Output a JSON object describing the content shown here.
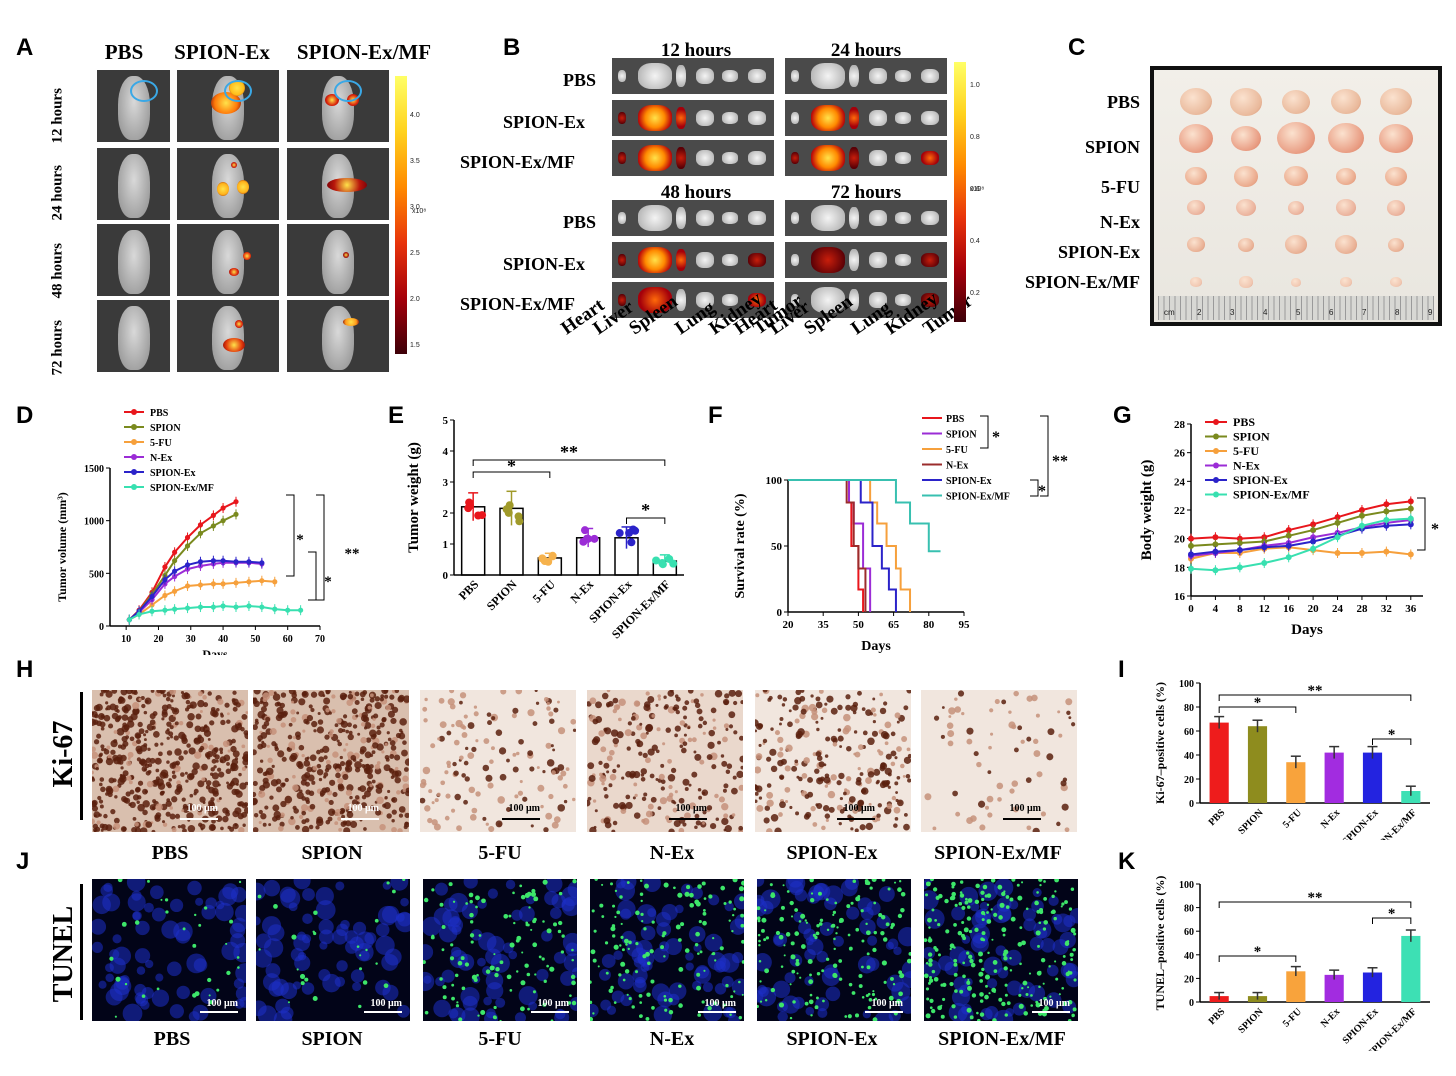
{
  "panel_letters": [
    "A",
    "B",
    "C",
    "D",
    "E",
    "F",
    "G",
    "H",
    "I",
    "J",
    "K"
  ],
  "panel_a": {
    "columns": [
      "PBS",
      "SPION-Ex",
      "SPION-Ex/MF"
    ],
    "rows": [
      "12 hours",
      "24 hours",
      "48 hours",
      "72 hours"
    ],
    "colorbar_ticks": [
      "4.0",
      "3.5",
      "3.0",
      "2.5",
      "2.0",
      "1.5"
    ],
    "colorbar_unit": "x10⁸"
  },
  "panel_b": {
    "timepoints": [
      "12 hours",
      "24 hours",
      "48 hours",
      "72 hours"
    ],
    "groups": [
      "PBS",
      "SPION-Ex",
      "SPION-Ex/MF"
    ],
    "organs": [
      "Heart",
      "Liver",
      "Spleen",
      "Lung",
      "Kidney",
      "Tumor"
    ],
    "colorbar_ticks": [
      "1.0",
      "0.8",
      "0.6",
      "0.4",
      "0.2"
    ],
    "colorbar_unit": "x10⁸"
  },
  "panel_c": {
    "groups": [
      "PBS",
      "SPION",
      "5-FU",
      "N-Ex",
      "SPION-Ex",
      "SPION-Ex/MF"
    ],
    "ruler_labels": [
      "cm",
      "2",
      "3",
      "4",
      "5",
      "6",
      "7",
      "8",
      "9"
    ]
  },
  "panel_h": {
    "stain": "Ki-67",
    "groups": [
      "PBS",
      "SPION",
      "5-FU",
      "N-Ex",
      "SPION-Ex",
      "SPION-Ex/MF"
    ],
    "scale": "100 μm"
  },
  "panel_j": {
    "stain": "TUNEL",
    "groups": [
      "PBS",
      "SPION",
      "5-FU",
      "N-Ex",
      "SPION-Ex",
      "SPION-Ex/MF"
    ],
    "scale": "100 μm"
  },
  "chart_data": [
    {
      "panel": "D",
      "type": "line",
      "xlabel": "Days",
      "ylabel": "Tumor volume (mm³)",
      "xlim": [
        5,
        70
      ],
      "ylim": [
        0,
        1500
      ],
      "xticks": [
        10,
        20,
        30,
        40,
        50,
        60,
        70
      ],
      "yticks": [
        0,
        500,
        1000,
        1500
      ],
      "series": [
        {
          "name": "PBS",
          "color": "#e8161c",
          "x": [
            11,
            14,
            18,
            22,
            25,
            29,
            33,
            37,
            40,
            44
          ],
          "y": [
            60,
            150,
            320,
            560,
            700,
            840,
            960,
            1050,
            1120,
            1180
          ]
        },
        {
          "name": "SPION",
          "color": "#7a8a1e",
          "x": [
            11,
            14,
            18,
            22,
            25,
            29,
            33,
            37,
            40,
            44
          ],
          "y": [
            60,
            140,
            300,
            480,
            620,
            760,
            880,
            950,
            1000,
            1060
          ]
        },
        {
          "name": "5-FU",
          "color": "#f6a03c",
          "x": [
            11,
            14,
            18,
            22,
            25,
            29,
            33,
            37,
            40,
            44,
            48,
            52,
            56
          ],
          "y": [
            60,
            110,
            200,
            290,
            330,
            380,
            390,
            400,
            400,
            410,
            420,
            430,
            420
          ]
        },
        {
          "name": "N-Ex",
          "color": "#9b2cd6",
          "x": [
            11,
            14,
            18,
            22,
            25,
            29,
            33,
            37,
            40,
            44,
            48,
            52
          ],
          "y": [
            60,
            130,
            250,
            400,
            470,
            540,
            570,
            590,
            600,
            600,
            600,
            590
          ]
        },
        {
          "name": "SPION-Ex",
          "color": "#2b23c9",
          "x": [
            11,
            14,
            18,
            22,
            25,
            29,
            33,
            37,
            40,
            44,
            48,
            52
          ],
          "y": [
            60,
            140,
            280,
            440,
            520,
            580,
            610,
            620,
            620,
            610,
            610,
            600
          ]
        },
        {
          "name": "SPION-Ex/MF",
          "color": "#38e0b0",
          "x": [
            11,
            14,
            18,
            22,
            25,
            29,
            33,
            37,
            40,
            44,
            48,
            52,
            56,
            60,
            64
          ],
          "y": [
            60,
            110,
            140,
            150,
            160,
            170,
            180,
            180,
            190,
            180,
            190,
            180,
            160,
            150,
            150
          ]
        }
      ],
      "annotations": [
        "*",
        "*",
        "**"
      ]
    },
    {
      "panel": "E",
      "type": "bar",
      "xlabel": "",
      "ylabel": "Tumor weight (g)",
      "ylim": [
        0,
        5
      ],
      "yticks": [
        0,
        1,
        2,
        3,
        4,
        5
      ],
      "categories": [
        "PBS",
        "SPION",
        "5-FU",
        "N-Ex",
        "SPION-Ex",
        "SPION-Ex/MF"
      ],
      "values": [
        2.2,
        2.15,
        0.55,
        1.2,
        1.2,
        0.45
      ],
      "errors": [
        0.45,
        0.55,
        0.15,
        0.3,
        0.35,
        0.2
      ],
      "point_colors": [
        "#e8161c",
        "#a09a2a",
        "#f6b24c",
        "#9b2cd6",
        "#2b23c9",
        "#38e0b0"
      ],
      "annotations": [
        "*",
        "**",
        "*"
      ]
    },
    {
      "panel": "F",
      "type": "line",
      "xlabel": "Days",
      "ylabel": "Survival rate (%)",
      "xlim": [
        20,
        95
      ],
      "ylim": [
        0,
        100
      ],
      "xticks": [
        20,
        35,
        50,
        65,
        80,
        95
      ],
      "yticks": [
        0,
        50,
        100
      ],
      "series": [
        {
          "name": "PBS",
          "color": "#e8161c",
          "x": [
            20,
            46,
            46,
            47,
            47,
            50,
            50,
            52,
            52
          ],
          "y": [
            100,
            100,
            83,
            83,
            50,
            50,
            17,
            17,
            0
          ]
        },
        {
          "name": "SPION",
          "color": "#9b2cd6",
          "x": [
            20,
            46,
            46,
            48,
            48,
            52,
            52,
            55,
            55
          ],
          "y": [
            100,
            100,
            83,
            83,
            67,
            67,
            33,
            33,
            0
          ]
        },
        {
          "name": "5-FU",
          "color": "#f6a03c",
          "x": [
            20,
            55,
            55,
            58,
            58,
            62,
            62,
            66,
            66,
            68,
            68,
            72,
            72
          ],
          "y": [
            100,
            100,
            83,
            83,
            67,
            67,
            50,
            50,
            33,
            33,
            17,
            17,
            0
          ]
        },
        {
          "name": "N-Ex",
          "color": "#9b2c2c",
          "x": [
            20,
            45,
            45,
            48,
            48,
            50,
            50,
            53,
            53
          ],
          "y": [
            100,
            100,
            83,
            83,
            50,
            50,
            33,
            33,
            0
          ]
        },
        {
          "name": "SPION-Ex",
          "color": "#2b23c9",
          "x": [
            20,
            51,
            51,
            56,
            56,
            60,
            60,
            63,
            63,
            66,
            66
          ],
          "y": [
            100,
            100,
            83,
            83,
            50,
            50,
            33,
            33,
            17,
            17,
            0
          ]
        },
        {
          "name": "SPION-Ex/MF",
          "color": "#38c0b0",
          "x": [
            20,
            66,
            66,
            72,
            72,
            80,
            80,
            85
          ],
          "y": [
            100,
            100,
            83,
            83,
            67,
            67,
            46,
            46
          ]
        }
      ],
      "annotations": [
        "*",
        "*",
        "**"
      ]
    },
    {
      "panel": "G",
      "type": "line",
      "xlabel": "Days",
      "ylabel": "Body weight (g)",
      "xlim": [
        0,
        38
      ],
      "ylim": [
        16,
        28
      ],
      "xticks": [
        0,
        4,
        8,
        12,
        16,
        20,
        24,
        28,
        32,
        36
      ],
      "yticks": [
        16,
        18,
        20,
        22,
        24,
        26,
        28
      ],
      "series": [
        {
          "name": "PBS",
          "color": "#e8161c",
          "x": [
            0,
            4,
            8,
            12,
            16,
            20,
            24,
            28,
            32,
            36
          ],
          "y": [
            20.0,
            20.1,
            20.0,
            20.1,
            20.6,
            21.0,
            21.5,
            22.0,
            22.4,
            22.6
          ]
        },
        {
          "name": "SPION",
          "color": "#7a8a1e",
          "x": [
            0,
            4,
            8,
            12,
            16,
            20,
            24,
            28,
            32,
            36
          ],
          "y": [
            19.5,
            19.6,
            19.7,
            19.8,
            20.2,
            20.6,
            21.1,
            21.6,
            21.9,
            22.1
          ]
        },
        {
          "name": "5-FU",
          "color": "#f6a03c",
          "x": [
            0,
            4,
            8,
            12,
            16,
            20,
            24,
            28,
            32,
            36
          ],
          "y": [
            18.6,
            19.0,
            19.0,
            19.3,
            19.4,
            19.2,
            19.0,
            19.0,
            19.1,
            18.9
          ]
        },
        {
          "name": "N-Ex",
          "color": "#9b2cd6",
          "x": [
            0,
            4,
            8,
            12,
            16,
            20,
            24,
            28,
            32,
            36
          ],
          "y": [
            18.8,
            19.0,
            19.2,
            19.5,
            19.7,
            20.1,
            20.4,
            20.8,
            21.1,
            21.3
          ]
        },
        {
          "name": "SPION-Ex",
          "color": "#2b23c9",
          "x": [
            0,
            4,
            8,
            12,
            16,
            20,
            24,
            28,
            32,
            36
          ],
          "y": [
            18.9,
            19.1,
            19.2,
            19.4,
            19.5,
            19.8,
            20.2,
            20.7,
            20.9,
            21.0
          ]
        },
        {
          "name": "SPION-Ex/MF",
          "color": "#38e0b0",
          "x": [
            0,
            4,
            8,
            12,
            16,
            20,
            24,
            28,
            32,
            36
          ],
          "y": [
            17.9,
            17.8,
            18.0,
            18.3,
            18.7,
            19.3,
            20.1,
            20.9,
            21.3,
            21.4
          ]
        }
      ],
      "annotations": [
        "*"
      ]
    },
    {
      "panel": "I",
      "type": "bar",
      "xlabel": "",
      "ylabel": "Ki-67–positive cells (%)",
      "ylim": [
        0,
        100
      ],
      "yticks": [
        0,
        20,
        40,
        60,
        80,
        100
      ],
      "categories": [
        "PBS",
        "SPION",
        "5-FU",
        "N-Ex",
        "SPION-Ex",
        "SPION-Ex/MF"
      ],
      "values": [
        67,
        64,
        34,
        42,
        42,
        10
      ],
      "errors": [
        5,
        5,
        5,
        5,
        5,
        4
      ],
      "bar_colors": [
        "#ee1c1c",
        "#8e8c1e",
        "#f8a33c",
        "#a22ce0",
        "#2323e0",
        "#3de0b4"
      ],
      "annotations": [
        "*",
        "**",
        "*"
      ]
    },
    {
      "panel": "K",
      "type": "bar",
      "xlabel": "",
      "ylabel": "TUNEL–positive cells (%)",
      "ylim": [
        0,
        100
      ],
      "yticks": [
        0,
        20,
        40,
        60,
        80,
        100
      ],
      "categories": [
        "PBS",
        "SPION",
        "5-FU",
        "N-Ex",
        "SPION-Ex",
        "SPION-Ex/MF"
      ],
      "values": [
        5,
        5,
        26,
        23,
        25,
        56
      ],
      "errors": [
        3,
        3,
        4,
        4,
        4,
        5
      ],
      "bar_colors": [
        "#ee1c1c",
        "#8e8c1e",
        "#f8a33c",
        "#a22ce0",
        "#2323e0",
        "#3de0b4"
      ],
      "annotations": [
        "*",
        "**",
        "*"
      ]
    }
  ]
}
